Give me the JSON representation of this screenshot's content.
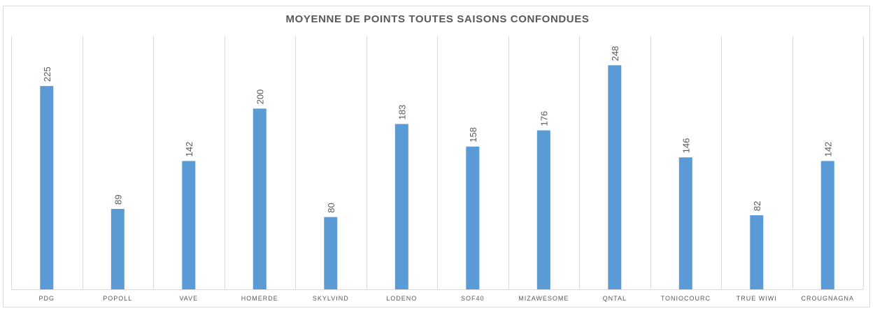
{
  "chart_data": {
    "type": "bar",
    "title": "MOYENNE DE POINTS TOUTES SAISONS CONFONDUES",
    "xlabel": "",
    "ylabel": "",
    "categories": [
      "PDG",
      "POPOLL",
      "VAVE",
      "HOMERDE",
      "SKYLVIND",
      "LODENO",
      "SOF40",
      "MIZAWESOME",
      "QNTAL",
      "TONIOCOURC",
      "TRUE WIWI",
      "CROUGNAGNA"
    ],
    "values": [
      225,
      89,
      142,
      200,
      80,
      183,
      158,
      176,
      248,
      146,
      82,
      142
    ],
    "ylim": [
      0,
      280
    ],
    "grid": "vertical category separators",
    "legend": "none",
    "data_labels": true,
    "data_label_orientation": "rotated-vertical",
    "colors": {
      "bar": "#5b9bd5",
      "text": "#595959",
      "grid": "#d9d9d9"
    }
  }
}
